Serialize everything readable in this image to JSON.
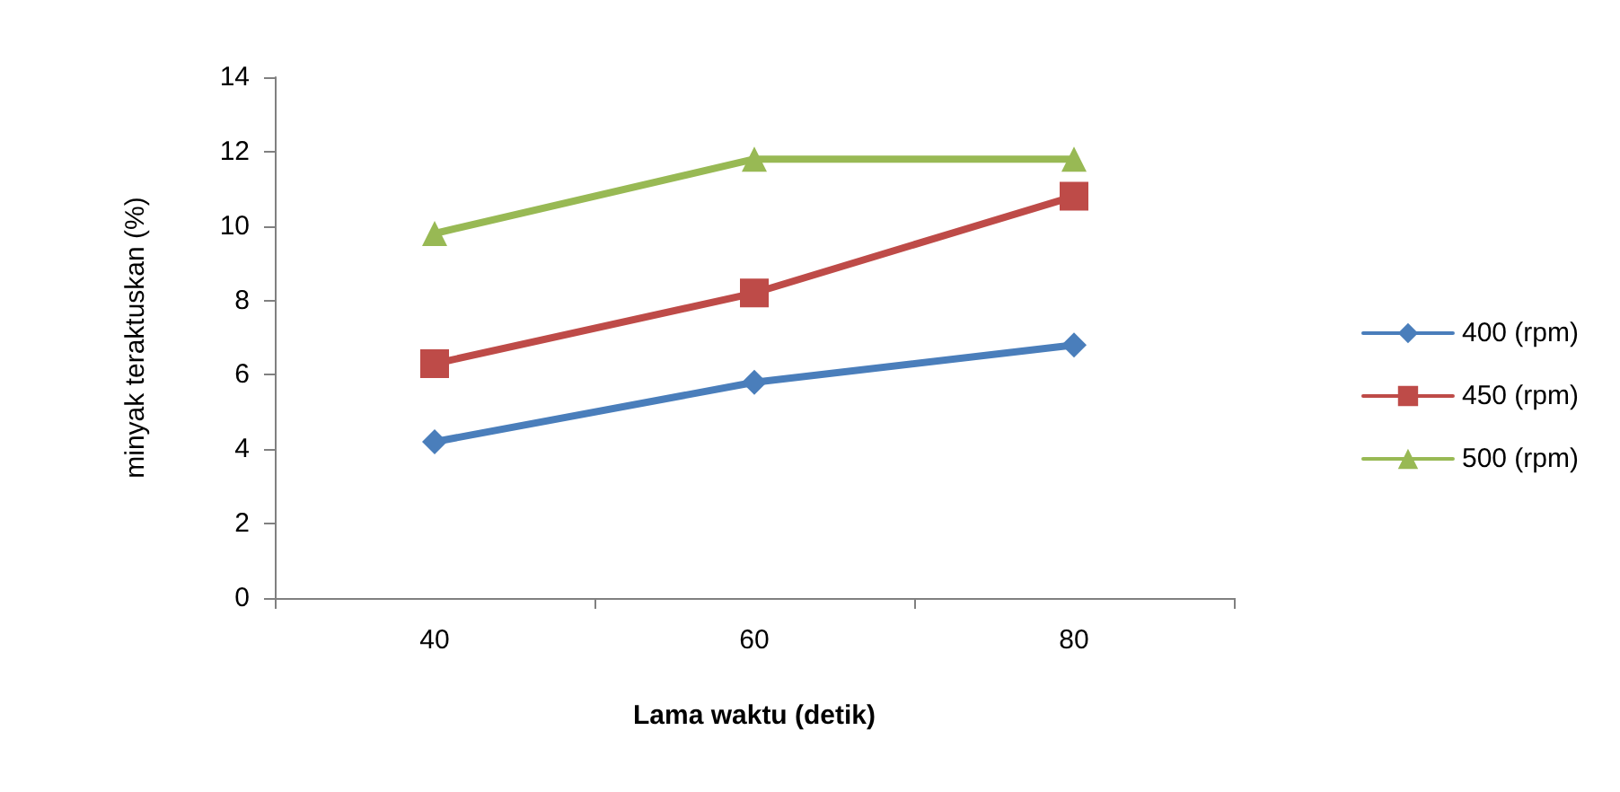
{
  "chart_data": {
    "type": "line",
    "xlabel": "Lama waktu (detik)",
    "ylabel": "minyak teraktuskan (%)",
    "categories": [
      "40",
      "60",
      "80"
    ],
    "series": [
      {
        "name": "400 (rpm)",
        "color": "#4a7ebb",
        "marker": "diamond",
        "values": [
          4.2,
          5.8,
          6.8
        ]
      },
      {
        "name": "450 (rpm)",
        "color": "#be4b48",
        "marker": "square",
        "values": [
          6.3,
          8.2,
          10.8
        ]
      },
      {
        "name": "500 (rpm)",
        "color": "#98b954",
        "marker": "triangle",
        "values": [
          9.8,
          11.8,
          11.8
        ]
      }
    ],
    "ylim": [
      0,
      14
    ],
    "yticks": [
      0,
      2,
      4,
      6,
      8,
      10,
      12,
      14
    ],
    "grid": false,
    "legend": "right",
    "line_style": "solid"
  }
}
